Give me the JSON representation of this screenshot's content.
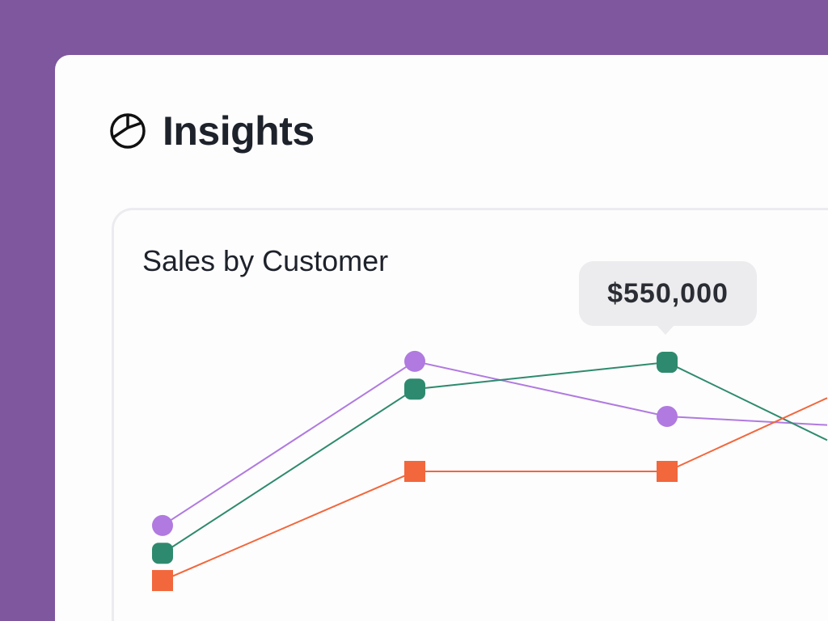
{
  "header": {
    "title": "Insights",
    "icon": "pie-chart-icon"
  },
  "card": {
    "title": "Sales by Customer"
  },
  "tooltip": {
    "value": "$550,000"
  },
  "colors": {
    "background": "#7e579e",
    "purple": "#b07ae0",
    "green": "#2e8a6e",
    "orange": "#f2673c"
  },
  "chart_data": {
    "type": "line",
    "title": "Sales by Customer",
    "x": [
      1,
      2,
      3,
      4
    ],
    "series": [
      {
        "color": "#b07ae0",
        "marker": "circle",
        "values": [
          203000,
          552000,
          435000,
          406000
        ]
      },
      {
        "color": "#2e8a6e",
        "marker": "rounded-square",
        "values": [
          144000,
          493000,
          550000,
          289000
        ]
      },
      {
        "color": "#f2673c",
        "marker": "square",
        "values": [
          86000,
          318000,
          318000,
          564000
        ]
      }
    ],
    "annotation": {
      "series": 1,
      "point": 2,
      "text": "$550,000"
    },
    "grid": false,
    "axes_visible": false
  }
}
